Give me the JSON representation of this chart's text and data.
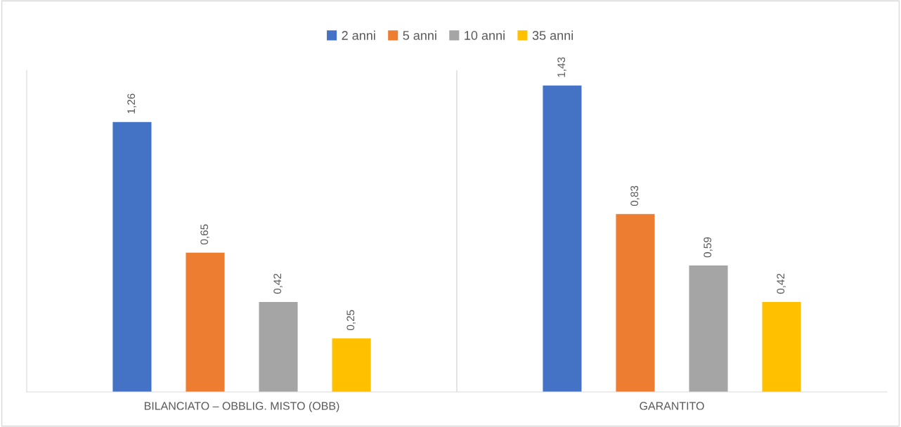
{
  "chart_data": {
    "type": "bar",
    "categories": [
      "BILANCIATO – OBBLIG. MISTO (OBB)",
      "GARANTITO"
    ],
    "series": [
      {
        "name": "2 anni",
        "color": "#4472c4",
        "values": [
          1.26,
          1.43
        ],
        "value_labels": [
          "1,26",
          "1,43"
        ]
      },
      {
        "name": "5 anni",
        "color": "#ed7d31",
        "values": [
          0.65,
          0.83
        ],
        "value_labels": [
          "0,65",
          "0,83"
        ]
      },
      {
        "name": "10 anni",
        "color": "#a5a5a5",
        "values": [
          0.42,
          0.59
        ],
        "value_labels": [
          "0,42",
          "0,59"
        ]
      },
      {
        "name": "35 anni",
        "color": "#ffc000",
        "values": [
          0.25,
          0.42
        ],
        "value_labels": [
          "0,25",
          "0,42"
        ]
      }
    ],
    "legend": "top",
    "grid": false
  }
}
